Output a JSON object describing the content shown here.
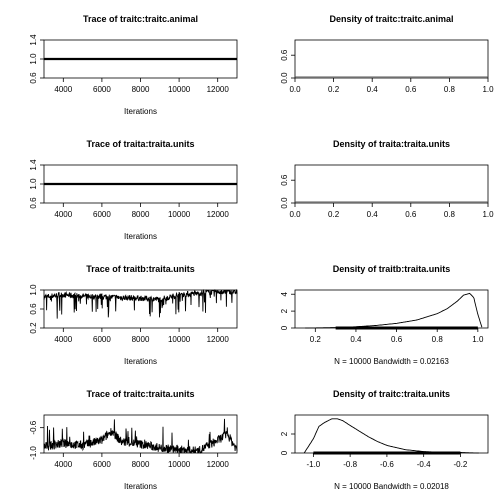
{
  "chart_data": [
    {
      "type": "line",
      "title": "Trace of traitc:traitc.animal",
      "xlabel": "Iterations",
      "xlim": [
        3000,
        13000
      ],
      "ylim": [
        0.6,
        1.4
      ],
      "xticks": [
        4000,
        6000,
        8000,
        10000,
        12000
      ],
      "yticks": [
        0.6,
        1.0,
        1.4
      ],
      "series": [
        {
          "x": [
            3000,
            13000
          ],
          "y": [
            1.0,
            1.0
          ]
        }
      ]
    },
    {
      "type": "line",
      "title": "Density of traitc:traitc.animal",
      "xlim": [
        0.0,
        1.0
      ],
      "ylim": [
        0.0,
        1.0
      ],
      "xticks": [
        0.0,
        0.2,
        0.4,
        0.6,
        0.8,
        1.0
      ],
      "yticks": [
        0.0,
        0.6
      ],
      "series": [
        {
          "x": [
            0.0,
            1.0
          ],
          "y": [
            0.0,
            0.0
          ]
        }
      ]
    },
    {
      "type": "line",
      "title": "Trace of traita:traita.units",
      "xlabel": "Iterations",
      "xlim": [
        3000,
        13000
      ],
      "ylim": [
        0.6,
        1.4
      ],
      "xticks": [
        4000,
        6000,
        8000,
        10000,
        12000
      ],
      "yticks": [
        0.6,
        1.0,
        1.4
      ],
      "series": [
        {
          "x": [
            3000,
            13000
          ],
          "y": [
            1.0,
            1.0
          ]
        }
      ]
    },
    {
      "type": "line",
      "title": "Density of traita:traita.units",
      "xlim": [
        0.0,
        1.0
      ],
      "ylim": [
        0.0,
        1.0
      ],
      "xticks": [
        0.0,
        0.2,
        0.4,
        0.6,
        0.8,
        1.0
      ],
      "yticks": [
        0.0,
        0.6
      ],
      "series": [
        {
          "x": [
            0.0,
            1.0
          ],
          "y": [
            0.0,
            0.0
          ]
        }
      ]
    },
    {
      "type": "line",
      "title": "Trace of traitb:traita.units",
      "xlabel": "Iterations",
      "xlim": [
        3000,
        13000
      ],
      "ylim": [
        0.2,
        1.0
      ],
      "xticks": [
        4000,
        6000,
        8000,
        10000,
        12000
      ],
      "yticks": [
        0.2,
        0.6,
        1.0
      ],
      "series": [
        {
          "x": [
            3000,
            3500,
            4000,
            5000,
            6000,
            7000,
            8000,
            9000,
            10000,
            11000,
            11500,
            12000,
            12500,
            13000
          ],
          "y": [
            0.85,
            0.88,
            0.9,
            0.87,
            0.86,
            0.84,
            0.83,
            0.8,
            0.9,
            0.93,
            0.96,
            0.97,
            0.97,
            0.96
          ]
        }
      ]
    },
    {
      "type": "line",
      "title": "Density of traitb:traita.units",
      "xlabel": "N = 10000   Bandwidth = 0.02163",
      "xlim": [
        0.1,
        1.05
      ],
      "ylim": [
        0,
        4.5
      ],
      "xticks": [
        0.2,
        0.4,
        0.6,
        0.8,
        1.0
      ],
      "yticks": [
        0,
        2,
        4
      ],
      "series": [
        {
          "x": [
            0.15,
            0.3,
            0.4,
            0.5,
            0.6,
            0.7,
            0.8,
            0.85,
            0.9,
            0.93,
            0.96,
            0.98,
            1.0,
            1.02
          ],
          "y": [
            0.0,
            0.05,
            0.15,
            0.3,
            0.55,
            0.95,
            1.7,
            2.3,
            3.2,
            3.9,
            4.1,
            3.6,
            1.6,
            0.1
          ]
        }
      ]
    },
    {
      "type": "line",
      "title": "Trace of traitc:traita.units",
      "xlabel": "Iterations",
      "xlim": [
        3000,
        13000
      ],
      "ylim": [
        -1.0,
        -0.4
      ],
      "xticks": [
        4000,
        6000,
        8000,
        10000,
        12000
      ],
      "yticks": [
        -1.0,
        -0.6
      ],
      "series": [
        {
          "x": [
            3000,
            4000,
            5000,
            6000,
            6500,
            7000,
            8000,
            9000,
            10000,
            11000,
            12000,
            12500,
            13000
          ],
          "y": [
            -0.9,
            -0.85,
            -0.88,
            -0.8,
            -0.65,
            -0.82,
            -0.86,
            -0.92,
            -0.95,
            -0.97,
            -0.8,
            -0.7,
            -0.95
          ]
        }
      ]
    },
    {
      "type": "line",
      "title": "Density of traitc:traita.units",
      "xlabel": "N = 10000   Bandwidth = 0.02018",
      "xlim": [
        -1.1,
        -0.05
      ],
      "ylim": [
        0,
        4
      ],
      "xticks": [
        -1.0,
        -0.8,
        -0.6,
        -0.4,
        -0.2
      ],
      "yticks": [
        0,
        2
      ],
      "series": [
        {
          "x": [
            -1.05,
            -1.0,
            -0.97,
            -0.94,
            -0.9,
            -0.87,
            -0.84,
            -0.8,
            -0.75,
            -0.7,
            -0.65,
            -0.6,
            -0.5,
            -0.4,
            -0.3,
            -0.2,
            -0.1
          ],
          "y": [
            0.0,
            1.5,
            2.8,
            3.2,
            3.6,
            3.6,
            3.4,
            2.9,
            2.3,
            1.7,
            1.2,
            0.8,
            0.35,
            0.15,
            0.08,
            0.05,
            0.0
          ]
        }
      ]
    }
  ]
}
